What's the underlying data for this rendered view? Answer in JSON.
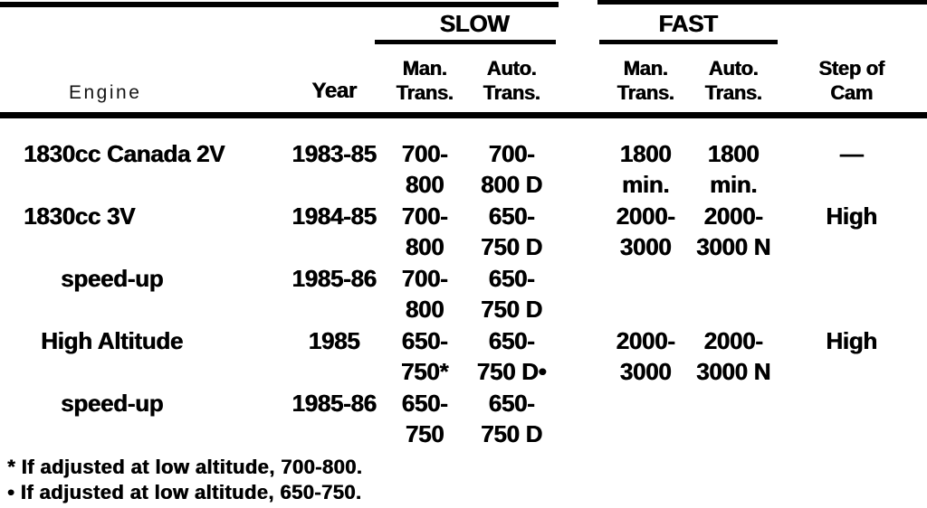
{
  "colors": {
    "ink": "#000000",
    "paper": "#ffffff"
  },
  "table": {
    "headers": {
      "engine": "Engine",
      "year": "Year",
      "slow_group": "SLOW",
      "fast_group": "FAST",
      "slow_man": [
        "Man.",
        "Trans."
      ],
      "slow_auto": [
        "Auto.",
        "Trans."
      ],
      "fast_man": [
        "Man.",
        "Trans."
      ],
      "fast_auto": [
        "Auto.",
        "Trans."
      ],
      "step_of_cam": [
        "Step of",
        "Cam"
      ]
    },
    "rows": [
      {
        "engine": "1830cc Canada 2V",
        "year": "1983-85",
        "slow_man": [
          "700-",
          "800"
        ],
        "slow_auto": [
          "700-",
          "800 D"
        ],
        "fast_man": [
          "1800",
          "min."
        ],
        "fast_auto": [
          "1800",
          "min."
        ],
        "step_of_cam": "—"
      },
      {
        "engine": "1830cc 3V",
        "year": "1984-85",
        "slow_man": [
          "700-",
          "800"
        ],
        "slow_auto": [
          "650-",
          "750 D"
        ],
        "fast_man": [
          "2000-",
          "3000"
        ],
        "fast_auto": [
          "2000-",
          "3000 N"
        ],
        "step_of_cam": "High"
      },
      {
        "engine": "speed-up",
        "year": "1985-86",
        "slow_man": [
          "700-",
          "800"
        ],
        "slow_auto": [
          "650-",
          "750 D"
        ],
        "fast_man": [
          "",
          ""
        ],
        "fast_auto": [
          "",
          ""
        ],
        "step_of_cam": ""
      },
      {
        "engine": "High Altitude",
        "year": "1985",
        "slow_man": [
          "650-",
          "750*"
        ],
        "slow_auto": [
          "650-",
          "750 D•"
        ],
        "fast_man": [
          "2000-",
          "3000"
        ],
        "fast_auto": [
          "2000-",
          "3000 N"
        ],
        "step_of_cam": "High"
      },
      {
        "engine": "speed-up",
        "year": "1985-86",
        "slow_man": [
          "650-",
          "750"
        ],
        "slow_auto": [
          "650-",
          "750 D"
        ],
        "fast_man": [
          "",
          ""
        ],
        "fast_auto": [
          "",
          ""
        ],
        "step_of_cam": ""
      }
    ],
    "footnotes": [
      "* If adjusted at low altitude, 700-800.",
      "• If adjusted at low altitude, 650-750."
    ]
  }
}
